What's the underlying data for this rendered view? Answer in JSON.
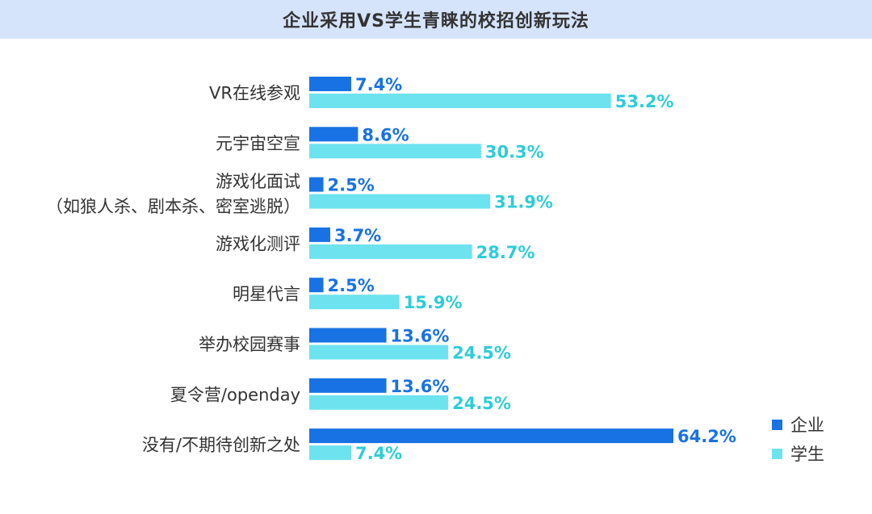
{
  "chart_data": {
    "type": "bar",
    "orientation": "horizontal",
    "title": "企业采用VS学生青睐的校招创新玩法",
    "categories": [
      [
        "VR在线参观"
      ],
      [
        "元宇宙空宣"
      ],
      [
        "游戏化面试",
        "（如狼人杀、剧本杀、密室逃脱）"
      ],
      [
        "游戏化测评"
      ],
      [
        "明星代言"
      ],
      [
        "举办校园赛事"
      ],
      [
        "夏令营/openday"
      ],
      [
        "没有/不期待创新之处"
      ]
    ],
    "series": [
      {
        "name": "企业",
        "color": "#1872e4",
        "values": [
          7.4,
          8.6,
          2.5,
          3.7,
          2.5,
          13.6,
          13.6,
          64.2
        ],
        "labels": [
          "7.4%",
          "8.6%",
          "2.5%",
          "3.7%",
          "2.5%",
          "13.6%",
          "13.6%",
          "64.2%"
        ]
      },
      {
        "name": "学生",
        "color": "#6de3ef",
        "label_color": "#2ccdd9",
        "values": [
          53.2,
          30.3,
          31.9,
          28.7,
          15.9,
          24.5,
          24.5,
          7.4
        ],
        "labels": [
          "53.2%",
          "30.3%",
          "31.9%",
          "28.7%",
          "15.9%",
          "24.5%",
          "24.5%",
          "7.4%"
        ]
      }
    ],
    "xlim": [
      0,
      70
    ],
    "grid": false,
    "legend_position": "bottom-right"
  }
}
